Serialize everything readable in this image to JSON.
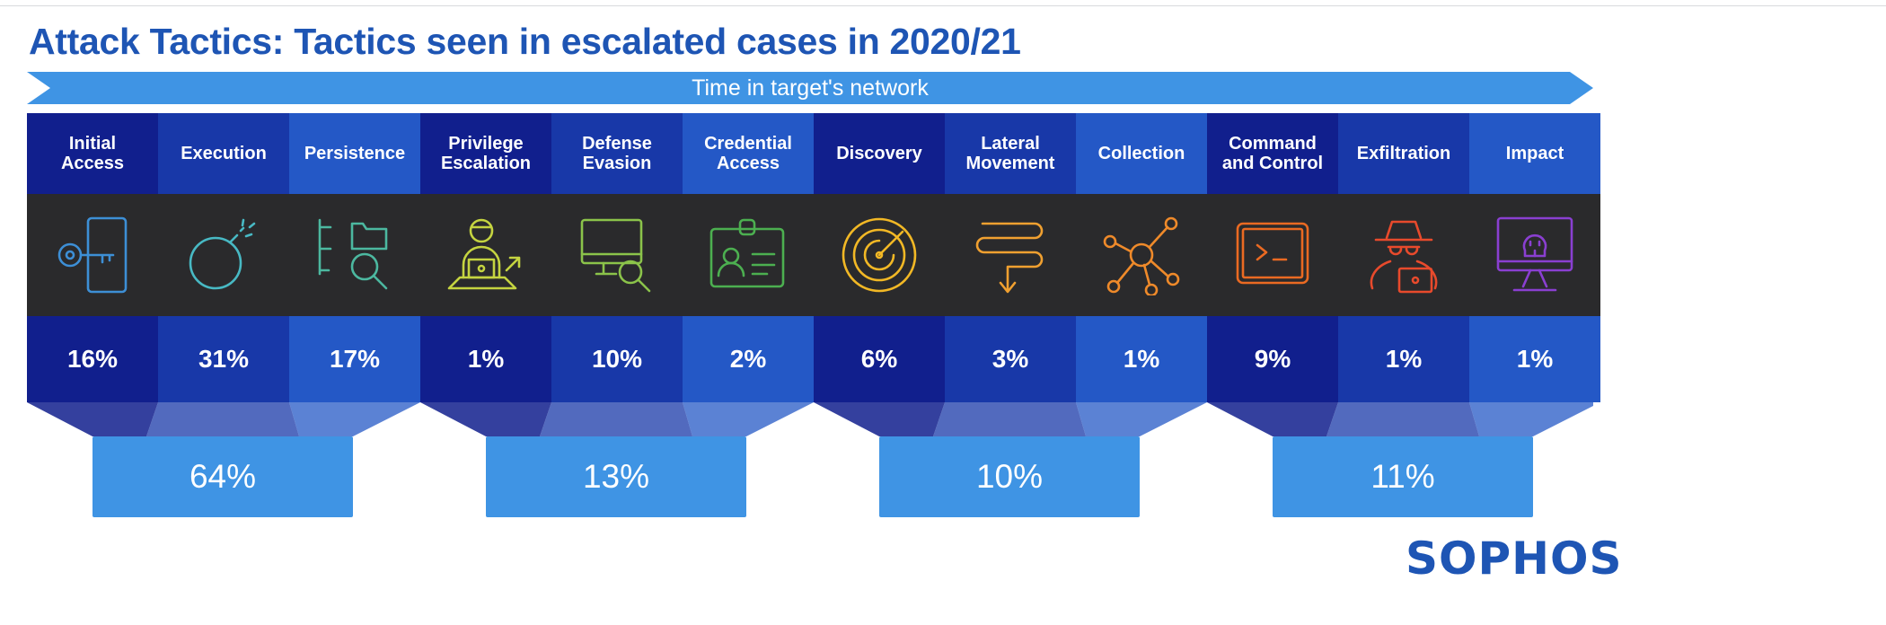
{
  "title": "Attack Tactics: Tactics seen in escalated cases in 2020/21",
  "timeline_label": "Time in target's network",
  "colors": {
    "dark": "#111f8d",
    "mid": "#1838a8",
    "light": "#2458c6",
    "icon_band": "#2a2a2c",
    "group_box": "#3f94e4",
    "brand": "#1e55b4"
  },
  "tactics": [
    {
      "header": "Initial\nAccess",
      "value": "16%",
      "icon": "key-door-icon",
      "icon_color": "#3d8fd6",
      "shade": "dark"
    },
    {
      "header": "Execution",
      "value": "31%",
      "icon": "bomb-icon",
      "icon_color": "#48b9c4",
      "shade": "mid"
    },
    {
      "header": "Persistence",
      "value": "17%",
      "icon": "folder-search-icon",
      "icon_color": "#4cb8a0",
      "shade": "light"
    },
    {
      "header": "Privilege\nEscalation",
      "value": "1%",
      "icon": "user-laptop-icon",
      "icon_color": "#c5d440",
      "shade": "dark"
    },
    {
      "header": "Defense\nEvasion",
      "value": "10%",
      "icon": "monitor-search-icon",
      "icon_color": "#8bc34a",
      "shade": "mid"
    },
    {
      "header": "Credential\nAccess",
      "value": "2%",
      "icon": "id-badge-icon",
      "icon_color": "#4caf50",
      "shade": "light"
    },
    {
      "header": "Discovery",
      "value": "6%",
      "icon": "radar-icon",
      "icon_color": "#f2b825",
      "shade": "dark"
    },
    {
      "header": "Lateral\nMovement",
      "value": "3%",
      "icon": "lateral-arrows-icon",
      "icon_color": "#f0a030",
      "shade": "mid"
    },
    {
      "header": "Collection",
      "value": "1%",
      "icon": "network-hub-icon",
      "icon_color": "#ef8a2a",
      "shade": "light"
    },
    {
      "header": "Command\nand Control",
      "value": "9%",
      "icon": "terminal-icon",
      "icon_color": "#ea6a22",
      "shade": "dark"
    },
    {
      "header": "Exfiltration",
      "value": "1%",
      "icon": "spy-icon",
      "icon_color": "#e84a2c",
      "shade": "mid"
    },
    {
      "header": "Impact",
      "value": "1%",
      "icon": "skull-monitor-icon",
      "icon_color": "#8a3fd1",
      "shade": "light"
    }
  ],
  "groups": [
    {
      "value": "64%"
    },
    {
      "value": "13%"
    },
    {
      "value": "10%"
    },
    {
      "value": "11%"
    }
  ],
  "logo": "SOPHOS"
}
